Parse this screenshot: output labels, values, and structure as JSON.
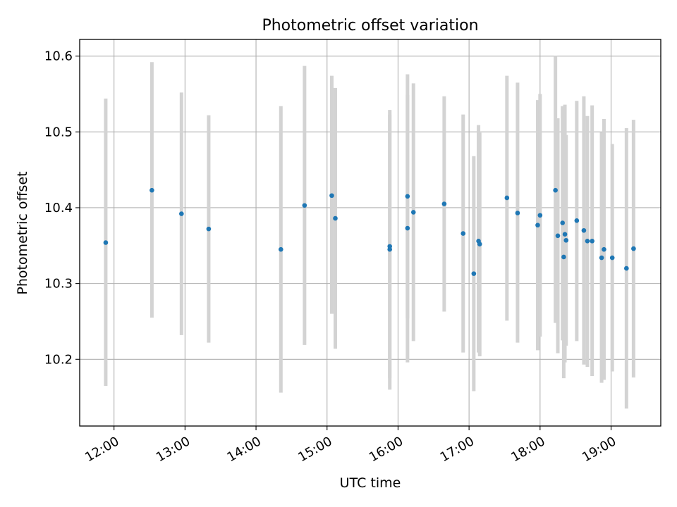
{
  "chart_data": {
    "type": "scatter",
    "title": "Photometric offset variation",
    "xlabel": "UTC time",
    "ylabel": "Photometric offset",
    "x_format": "HH:MM",
    "xlim": [
      "11:31",
      "19:42"
    ],
    "ylim": [
      10.112,
      10.622
    ],
    "x_ticks": [
      "12:00",
      "13:00",
      "14:00",
      "15:00",
      "16:00",
      "17:00",
      "18:00",
      "19:00"
    ],
    "y_ticks": [
      10.2,
      10.3,
      10.4,
      10.5,
      10.6
    ],
    "y_tick_labels": [
      "10.2",
      "10.3",
      "10.4",
      "10.5",
      "10.6"
    ],
    "grid": true,
    "colors": {
      "point": "#1f77b4",
      "errorbar": "#d3d3d3",
      "grid": "#b0b0b0"
    },
    "series": [
      {
        "points": [
          {
            "time": "11:53",
            "y": 10.354,
            "lo": 10.165,
            "hi": 10.544
          },
          {
            "time": "12:32",
            "y": 10.423,
            "lo": 10.255,
            "hi": 10.592
          },
          {
            "time": "12:57",
            "y": 10.392,
            "lo": 10.232,
            "hi": 10.552
          },
          {
            "time": "13:20",
            "y": 10.372,
            "lo": 10.222,
            "hi": 10.522
          },
          {
            "time": "14:21",
            "y": 10.345,
            "lo": 10.156,
            "hi": 10.534
          },
          {
            "time": "14:41",
            "y": 10.403,
            "lo": 10.219,
            "hi": 10.587
          },
          {
            "time": "15:04",
            "y": 10.416,
            "lo": 10.26,
            "hi": 10.574
          },
          {
            "time": "15:07",
            "y": 10.386,
            "lo": 10.214,
            "hi": 10.558
          },
          {
            "time": "15:53",
            "y": 10.349,
            "lo": 10.175,
            "hi": 10.523
          },
          {
            "time": "15:53",
            "y": 10.345,
            "lo": 10.16,
            "hi": 10.529
          },
          {
            "time": "16:08",
            "y": 10.373,
            "lo": 10.196,
            "hi": 10.549
          },
          {
            "time": "16:08",
            "y": 10.415,
            "lo": 10.254,
            "hi": 10.576
          },
          {
            "time": "16:13",
            "y": 10.394,
            "lo": 10.224,
            "hi": 10.564
          },
          {
            "time": "16:39",
            "y": 10.405,
            "lo": 10.263,
            "hi": 10.547
          },
          {
            "time": "16:55",
            "y": 10.366,
            "lo": 10.209,
            "hi": 10.523
          },
          {
            "time": "17:04",
            "y": 10.313,
            "lo": 10.158,
            "hi": 10.468
          },
          {
            "time": "17:08",
            "y": 10.356,
            "lo": 10.209,
            "hi": 10.509
          },
          {
            "time": "17:09",
            "y": 10.352,
            "lo": 10.204,
            "hi": 10.499
          },
          {
            "time": "17:32",
            "y": 10.413,
            "lo": 10.251,
            "hi": 10.574
          },
          {
            "time": "17:41",
            "y": 10.393,
            "lo": 10.222,
            "hi": 10.565
          },
          {
            "time": "17:58",
            "y": 10.377,
            "lo": 10.212,
            "hi": 10.542
          },
          {
            "time": "18:00",
            "y": 10.39,
            "lo": 10.23,
            "hi": 10.55
          },
          {
            "time": "18:13",
            "y": 10.423,
            "lo": 10.248,
            "hi": 10.6
          },
          {
            "time": "18:15",
            "y": 10.363,
            "lo": 10.208,
            "hi": 10.518
          },
          {
            "time": "18:19",
            "y": 10.38,
            "lo": 10.225,
            "hi": 10.534
          },
          {
            "time": "18:20",
            "y": 10.335,
            "lo": 10.175,
            "hi": 10.495
          },
          {
            "time": "18:21",
            "y": 10.365,
            "lo": 10.196,
            "hi": 10.536
          },
          {
            "time": "18:22",
            "y": 10.357,
            "lo": 10.218,
            "hi": 10.496
          },
          {
            "time": "18:31",
            "y": 10.383,
            "lo": 10.224,
            "hi": 10.541
          },
          {
            "time": "18:37",
            "y": 10.37,
            "lo": 10.193,
            "hi": 10.547
          },
          {
            "time": "18:40",
            "y": 10.356,
            "lo": 10.19,
            "hi": 10.521
          },
          {
            "time": "18:44",
            "y": 10.356,
            "lo": 10.178,
            "hi": 10.535
          },
          {
            "time": "18:52",
            "y": 10.334,
            "lo": 10.169,
            "hi": 10.5
          },
          {
            "time": "18:54",
            "y": 10.345,
            "lo": 10.173,
            "hi": 10.517
          },
          {
            "time": "19:01",
            "y": 10.334,
            "lo": 10.184,
            "hi": 10.484
          },
          {
            "time": "19:13",
            "y": 10.32,
            "lo": 10.135,
            "hi": 10.505
          },
          {
            "time": "19:19",
            "y": 10.346,
            "lo": 10.176,
            "hi": 10.516
          }
        ]
      }
    ]
  }
}
